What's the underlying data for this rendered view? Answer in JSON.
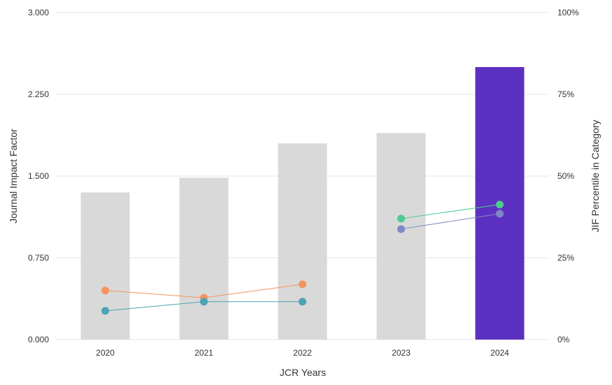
{
  "chart_data": {
    "type": "bar+line",
    "categories": [
      "2020",
      "2021",
      "2022",
      "2023",
      "2024"
    ],
    "bar_series": {
      "name": "Journal Impact Factor",
      "values": [
        1.35,
        1.485,
        1.8,
        1.895,
        2.5
      ],
      "colors": [
        "#d9d9d9",
        "#d9d9d9",
        "#d9d9d9",
        "#d9d9d9",
        "#5c30c0"
      ]
    },
    "line_series": [
      {
        "name": "percentile-series-1",
        "color": "#f4955e",
        "start": 0,
        "values": [
          15.0,
          12.8,
          16.9
        ]
      },
      {
        "name": "percentile-series-2",
        "color": "#4ba3b5",
        "start": 0,
        "values": [
          8.8,
          11.6,
          11.6
        ]
      },
      {
        "name": "percentile-series-3",
        "color": "#4ecb8f",
        "start": 3,
        "values": [
          37.0,
          41.3
        ]
      },
      {
        "name": "percentile-series-4",
        "color": "#7f89c4",
        "start": 3,
        "values": [
          33.8,
          38.5
        ]
      }
    ],
    "y_left": {
      "label": "Journal Impact Factor",
      "ticks": [
        "0.000",
        "0.750",
        "1.500",
        "2.250",
        "3.000"
      ],
      "range": [
        0,
        3
      ]
    },
    "y_right": {
      "label": "JIF Percentile in Category",
      "ticks": [
        "0%",
        "25%",
        "50%",
        "75%",
        "100%"
      ],
      "range": [
        0,
        100
      ]
    },
    "x_label": "JCR Years",
    "grid": true
  }
}
